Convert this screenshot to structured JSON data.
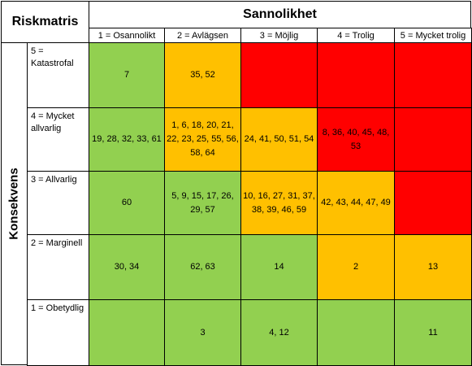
{
  "title": "Riskmatris",
  "x_axis_title": "Sannolikhet",
  "y_axis_title": "Konsekvens",
  "columns": [
    "1 = Osannolikt",
    "2 = Avlägsen",
    "3 = Möjlig",
    "4 = Trolig",
    "5 = Mycket trolig"
  ],
  "rows": [
    "5 = Katastrofal",
    "4 = Mycket allvarlig",
    "3 = Allvarlig",
    "2 = Marginell",
    "1 = Obetydlig"
  ],
  "colors": {
    "green": "#92d050",
    "yellow": "#ffc000",
    "red": "#ff0000",
    "border": "#000000"
  },
  "cells": [
    [
      {
        "text": "7",
        "color": "green"
      },
      {
        "text": "35, 52",
        "color": "yellow"
      },
      {
        "text": "",
        "color": "red"
      },
      {
        "text": "",
        "color": "red"
      },
      {
        "text": "",
        "color": "red"
      }
    ],
    [
      {
        "text": "19, 28, 32, 33, 61",
        "color": "green"
      },
      {
        "text": "1, 6, 18, 20, 21, 22, 23, 25, 55, 56, 58, 64",
        "color": "yellow"
      },
      {
        "text": "24, 41, 50, 51, 54",
        "color": "yellow"
      },
      {
        "text": "8, 36, 40, 45, 48, 53",
        "color": "red"
      },
      {
        "text": "",
        "color": "red"
      }
    ],
    [
      {
        "text": "60",
        "color": "green"
      },
      {
        "text": "5, 9, 15, 17, 26, 29, 57",
        "color": "green"
      },
      {
        "text": "10, 16, 27, 31, 37, 38, 39, 46, 59",
        "color": "yellow"
      },
      {
        "text": "42, 43, 44, 47, 49",
        "color": "yellow"
      },
      {
        "text": "",
        "color": "red"
      }
    ],
    [
      {
        "text": "30, 34",
        "color": "green"
      },
      {
        "text": "62, 63",
        "color": "green"
      },
      {
        "text": "14",
        "color": "green"
      },
      {
        "text": "2",
        "color": "yellow"
      },
      {
        "text": "13",
        "color": "yellow"
      }
    ],
    [
      {
        "text": "",
        "color": "green"
      },
      {
        "text": "3",
        "color": "green"
      },
      {
        "text": "4, 12",
        "color": "green"
      },
      {
        "text": "",
        "color": "green"
      },
      {
        "text": "11",
        "color": "green"
      }
    ]
  ]
}
